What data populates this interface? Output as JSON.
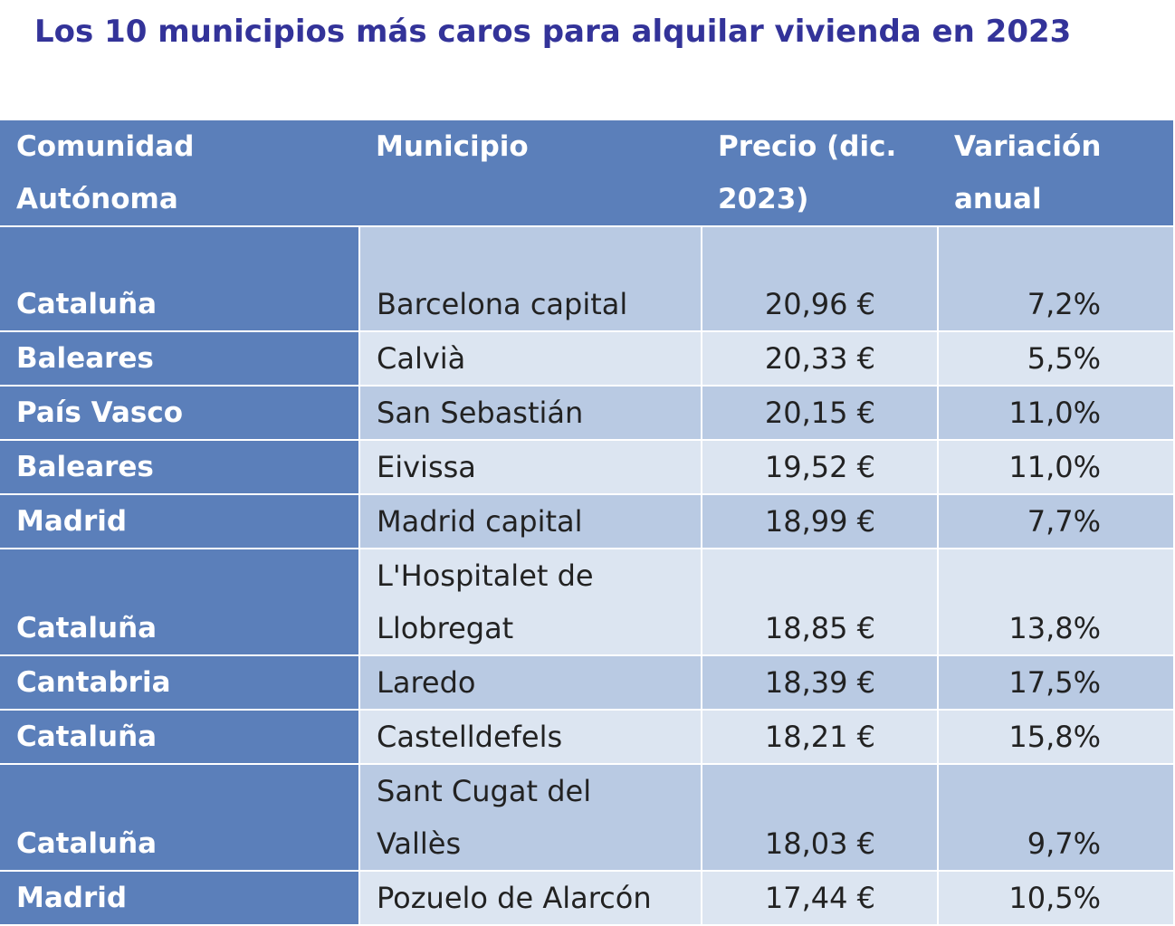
{
  "title": "Los 10 municipios más caros para alquilar vivienda en 2023",
  "table": {
    "headers": {
      "community": "Comunidad Autónoma",
      "municipality": "Municipio",
      "price": "Precio (dic. 2023)",
      "variation": "Variación anual"
    },
    "rows": [
      {
        "community": "Cataluña",
        "municipality": "Barcelona capital",
        "price": "20,96 €",
        "variation": "7,2%"
      },
      {
        "community": "Baleares",
        "municipality": "Calvià",
        "price": "20,33 €",
        "variation": "5,5%"
      },
      {
        "community": "País Vasco",
        "municipality": "San Sebastián",
        "price": "20,15 €",
        "variation": "11,0%"
      },
      {
        "community": "Baleares",
        "municipality": "Eivissa",
        "price": "19,52 €",
        "variation": "11,0%"
      },
      {
        "community": "Madrid",
        "municipality": "Madrid capital",
        "price": "18,99 €",
        "variation": "7,7%"
      },
      {
        "community": "Cataluña",
        "municipality": "L'Hospitalet de Llobregat",
        "price": "18,85 €",
        "variation": "13,8%"
      },
      {
        "community": "Cantabria",
        "municipality": "Laredo",
        "price": "18,39 €",
        "variation": "17,5%"
      },
      {
        "community": "Cataluña",
        "municipality": "Castelldefels",
        "price": "18,21 €",
        "variation": "15,8%"
      },
      {
        "community": "Cataluña",
        "municipality": "Sant Cugat del Vallès",
        "price": "18,03 €",
        "variation": "9,7%"
      },
      {
        "community": "Madrid",
        "municipality": "Pozuelo de Alarcón",
        "price": "17,44 €",
        "variation": "10,5%"
      }
    ]
  },
  "colors": {
    "title": "#333399",
    "header_bg": "#5b7fba",
    "row_odd": "#b9cae3",
    "row_even": "#dce5f1"
  }
}
